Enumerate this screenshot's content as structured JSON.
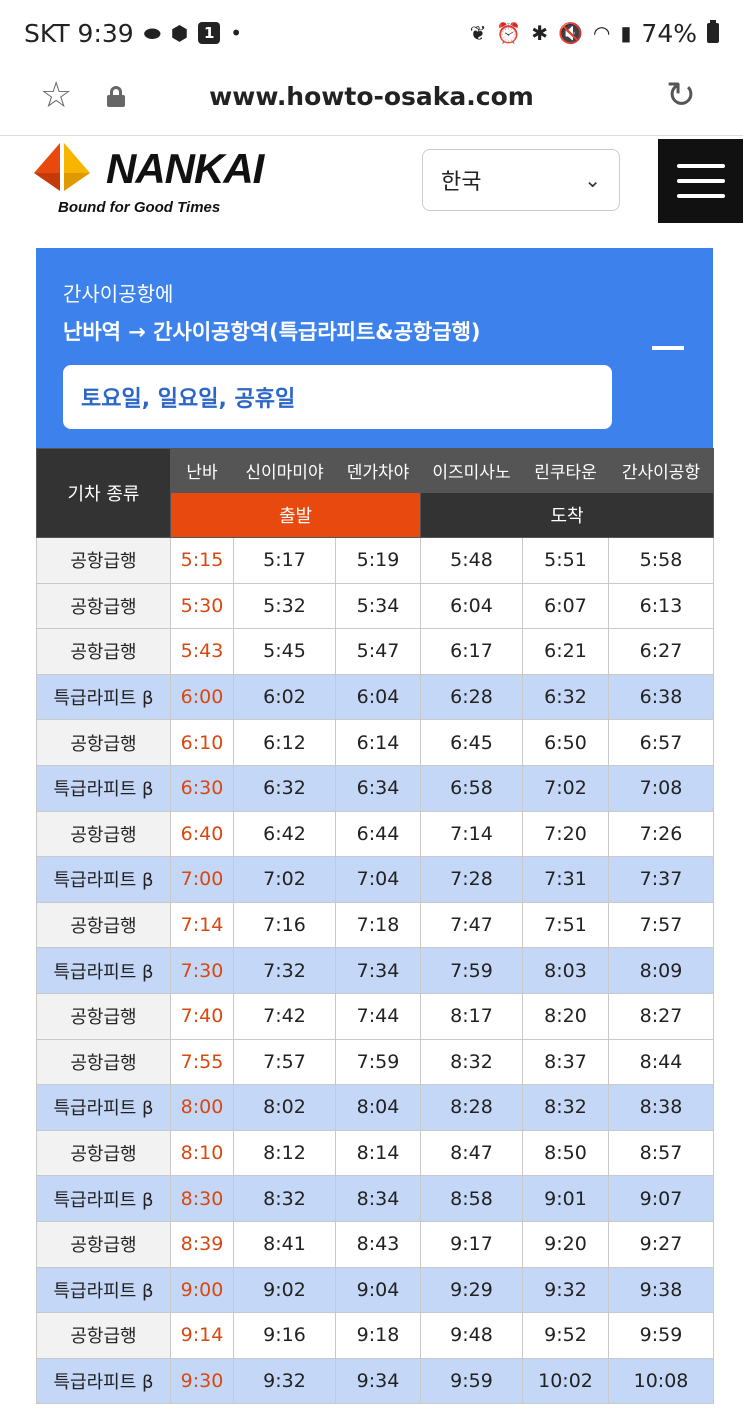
{
  "status_bar": {
    "carrier_time": "SKT 9:39",
    "battery": "74%",
    "icons_left": [
      "pill-icon",
      "cube-icon",
      "notification-1-icon",
      "dot-icon"
    ],
    "icons_right": [
      "leaf-icon",
      "alarm-icon",
      "bluetooth-icon",
      "mute-icon",
      "wifi-icon",
      "signal-icon",
      "battery-icon"
    ],
    "badge": "1"
  },
  "address_bar": {
    "url": "www.howto-osaka.com"
  },
  "site_header": {
    "logo_text": "NANKAI",
    "tagline": "Bound for Good Times",
    "language": "한국",
    "logo_colors": {
      "orange": "#e8490f",
      "yellow": "#f7b500"
    }
  },
  "panel": {
    "subtitle": "간사이공항에",
    "route": "난바역 → 간사이공항역(특급라피트&공항급행)",
    "day_type": "토요일, 일요일, 공휴일",
    "color": "#3d82ec"
  },
  "timetable": {
    "type_header": "기차 종류",
    "stations": [
      "난바",
      "신이마미야",
      "덴가차야",
      "이즈미사노",
      "린쿠타운",
      "간사이공항"
    ],
    "departure_label": "출발",
    "arrival_label": "도착",
    "rows": [
      {
        "type": "공항급행",
        "rapit": false,
        "times": [
          "5:15",
          "5:17",
          "5:19",
          "5:48",
          "5:51",
          "5:58"
        ]
      },
      {
        "type": "공항급행",
        "rapit": false,
        "times": [
          "5:30",
          "5:32",
          "5:34",
          "6:04",
          "6:07",
          "6:13"
        ]
      },
      {
        "type": "공항급행",
        "rapit": false,
        "times": [
          "5:43",
          "5:45",
          "5:47",
          "6:17",
          "6:21",
          "6:27"
        ]
      },
      {
        "type": "특급라피트 β",
        "rapit": true,
        "times": [
          "6:00",
          "6:02",
          "6:04",
          "6:28",
          "6:32",
          "6:38"
        ]
      },
      {
        "type": "공항급행",
        "rapit": false,
        "times": [
          "6:10",
          "6:12",
          "6:14",
          "6:45",
          "6:50",
          "6:57"
        ]
      },
      {
        "type": "특급라피트 β",
        "rapit": true,
        "times": [
          "6:30",
          "6:32",
          "6:34",
          "6:58",
          "7:02",
          "7:08"
        ]
      },
      {
        "type": "공항급행",
        "rapit": false,
        "times": [
          "6:40",
          "6:42",
          "6:44",
          "7:14",
          "7:20",
          "7:26"
        ]
      },
      {
        "type": "특급라피트 β",
        "rapit": true,
        "times": [
          "7:00",
          "7:02",
          "7:04",
          "7:28",
          "7:31",
          "7:37"
        ]
      },
      {
        "type": "공항급행",
        "rapit": false,
        "times": [
          "7:14",
          "7:16",
          "7:18",
          "7:47",
          "7:51",
          "7:57"
        ]
      },
      {
        "type": "특급라피트 β",
        "rapit": true,
        "times": [
          "7:30",
          "7:32",
          "7:34",
          "7:59",
          "8:03",
          "8:09"
        ]
      },
      {
        "type": "공항급행",
        "rapit": false,
        "times": [
          "7:40",
          "7:42",
          "7:44",
          "8:17",
          "8:20",
          "8:27"
        ]
      },
      {
        "type": "공항급행",
        "rapit": false,
        "times": [
          "7:55",
          "7:57",
          "7:59",
          "8:32",
          "8:37",
          "8:44"
        ]
      },
      {
        "type": "특급라피트 β",
        "rapit": true,
        "times": [
          "8:00",
          "8:02",
          "8:04",
          "8:28",
          "8:32",
          "8:38"
        ]
      },
      {
        "type": "공항급행",
        "rapit": false,
        "times": [
          "8:10",
          "8:12",
          "8:14",
          "8:47",
          "8:50",
          "8:57"
        ]
      },
      {
        "type": "특급라피트 β",
        "rapit": true,
        "times": [
          "8:30",
          "8:32",
          "8:34",
          "8:58",
          "9:01",
          "9:07"
        ]
      },
      {
        "type": "공항급행",
        "rapit": false,
        "times": [
          "8:39",
          "8:41",
          "8:43",
          "9:17",
          "9:20",
          "9:27"
        ]
      },
      {
        "type": "특급라피트 β",
        "rapit": true,
        "times": [
          "9:00",
          "9:02",
          "9:04",
          "9:29",
          "9:32",
          "9:38"
        ]
      },
      {
        "type": "공항급행",
        "rapit": false,
        "times": [
          "9:14",
          "9:16",
          "9:18",
          "9:48",
          "9:52",
          "9:59"
        ]
      },
      {
        "type": "특급라피트 β",
        "rapit": true,
        "times": [
          "9:30",
          "9:32",
          "9:34",
          "9:59",
          "10:02",
          "10:08"
        ]
      }
    ],
    "colors": {
      "departure": "#e8490f",
      "rapit_row": "#c4d7f7",
      "header": "#333333"
    }
  }
}
